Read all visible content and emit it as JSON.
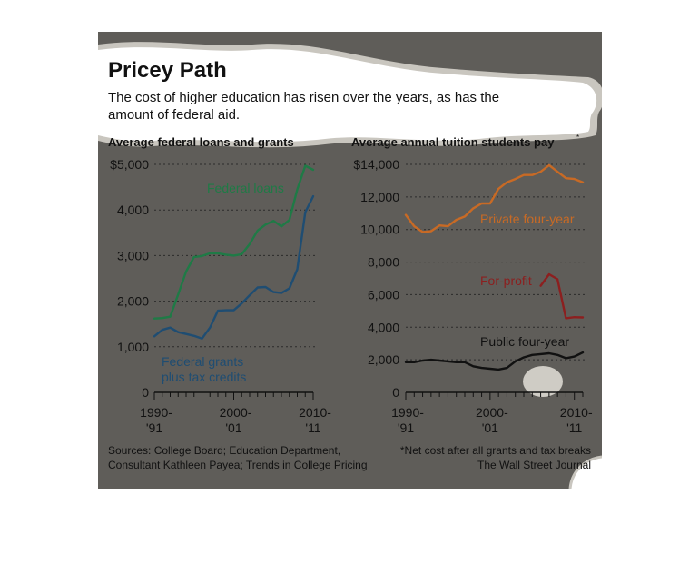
{
  "header": {
    "title": "Pricey Path",
    "subtitle_line1": "The cost of higher education has risen over the years, as has the",
    "subtitle_line2": "amount of federal aid."
  },
  "colors": {
    "background": "#5f5d59",
    "paper": "#ffffff",
    "banner_edge": "#c9c6bf",
    "gridline": "#2b2b2b",
    "text_light": "#ffffff",
    "text_dark": "#1a1a1a",
    "federal_loans": "#1f7a46",
    "federal_grants": "#1f4d72",
    "private_four_year": "#c86a25",
    "for_profit": "#8c1f1f",
    "public_four_year": "#111111"
  },
  "chart_data": [
    {
      "type": "line",
      "title": "Average federal loans and grants",
      "x_tick_labels": [
        [
          "1990-",
          "'91"
        ],
        [
          "2000-",
          "'01"
        ],
        [
          "2010-",
          "'11"
        ]
      ],
      "y_tick_labels": [
        "0",
        "1,000",
        "2,000",
        "3,000",
        "4,000",
        "$5,000"
      ],
      "ylim": [
        0,
        5000
      ],
      "grid": true,
      "series": [
        {
          "name": "Federal loans",
          "color": "#1f7a46",
          "points": [
            [
              1990,
              1620
            ],
            [
              1991,
              1630
            ],
            [
              1992,
              1660
            ],
            [
              1993,
              2150
            ],
            [
              1994,
              2650
            ],
            [
              1995,
              2970
            ],
            [
              1996,
              2990
            ],
            [
              1997,
              3050
            ],
            [
              1998,
              3050
            ],
            [
              1999,
              3020
            ],
            [
              2000,
              3000
            ],
            [
              2001,
              3030
            ],
            [
              2002,
              3250
            ],
            [
              2003,
              3550
            ],
            [
              2004,
              3680
            ],
            [
              2005,
              3760
            ],
            [
              2006,
              3640
            ],
            [
              2007,
              3780
            ],
            [
              2008,
              4450
            ],
            [
              2009,
              4970
            ],
            [
              2010,
              4880
            ]
          ]
        },
        {
          "name": "Federal grants plus tax credits",
          "color": "#1f4d72",
          "points": [
            [
              1990,
              1230
            ],
            [
              1991,
              1370
            ],
            [
              1992,
              1420
            ],
            [
              1993,
              1320
            ],
            [
              1994,
              1280
            ],
            [
              1995,
              1240
            ],
            [
              1996,
              1180
            ],
            [
              1997,
              1420
            ],
            [
              1998,
              1790
            ],
            [
              1999,
              1800
            ],
            [
              2000,
              1800
            ],
            [
              2001,
              1950
            ],
            [
              2002,
              2130
            ],
            [
              2003,
              2300
            ],
            [
              2004,
              2310
            ],
            [
              2005,
              2200
            ],
            [
              2006,
              2180
            ],
            [
              2007,
              2280
            ],
            [
              2008,
              2700
            ],
            [
              2009,
              3950
            ],
            [
              2010,
              4300
            ]
          ]
        }
      ],
      "labels": {
        "federal_loans": "Federal loans",
        "grants_line1": "Federal grants",
        "grants_line2": "plus tax credits"
      }
    },
    {
      "type": "line",
      "title": "Average annual tuition students pay",
      "title_marker": "*",
      "x_tick_labels": [
        [
          "1990-",
          "'91"
        ],
        [
          "2000-",
          "'01"
        ],
        [
          "2010-",
          "'11"
        ]
      ],
      "y_tick_labels": [
        "0",
        "2,000",
        "4,000",
        "6,000",
        "8,000",
        "10,000",
        "12,000",
        "$14,000"
      ],
      "ylim": [
        0,
        14000
      ],
      "grid": true,
      "series": [
        {
          "name": "Private four-year",
          "color": "#c86a25",
          "points": [
            [
              1990,
              10900
            ],
            [
              1991,
              10200
            ],
            [
              1992,
              9850
            ],
            [
              1993,
              9900
            ],
            [
              1994,
              10250
            ],
            [
              1995,
              10200
            ],
            [
              1996,
              10600
            ],
            [
              1997,
              10800
            ],
            [
              1998,
              11300
            ],
            [
              1999,
              11600
            ],
            [
              2000,
              11600
            ],
            [
              2001,
              12500
            ],
            [
              2002,
              12900
            ],
            [
              2003,
              13100
            ],
            [
              2004,
              13350
            ],
            [
              2005,
              13350
            ],
            [
              2006,
              13550
            ],
            [
              2007,
              13950
            ],
            [
              2008,
              13550
            ],
            [
              2009,
              13150
            ],
            [
              2010,
              13100
            ],
            [
              2011,
              12900
            ]
          ]
        },
        {
          "name": "For-profit",
          "color": "#8c1f1f",
          "points": [
            [
              2006,
              6550
            ],
            [
              2007,
              7250
            ],
            [
              2008,
              6950
            ],
            [
              2009,
              4550
            ],
            [
              2010,
              4620
            ],
            [
              2011,
              4600
            ]
          ]
        },
        {
          "name": "Public four-year",
          "color": "#111111",
          "points": [
            [
              1990,
              1850
            ],
            [
              1991,
              1850
            ],
            [
              1992,
              1950
            ],
            [
              1993,
              2000
            ],
            [
              1994,
              1950
            ],
            [
              1995,
              1900
            ],
            [
              1996,
              1850
            ],
            [
              1997,
              1850
            ],
            [
              1998,
              1600
            ],
            [
              1999,
              1500
            ],
            [
              2000,
              1450
            ],
            [
              2001,
              1400
            ],
            [
              2002,
              1500
            ],
            [
              2003,
              1900
            ],
            [
              2004,
              2150
            ],
            [
              2005,
              2300
            ],
            [
              2006,
              2350
            ],
            [
              2007,
              2400
            ],
            [
              2008,
              2300
            ],
            [
              2009,
              2100
            ],
            [
              2010,
              2200
            ],
            [
              2011,
              2450
            ]
          ]
        }
      ],
      "labels": {
        "private": "Private four-year",
        "for_profit": "For-profit",
        "public": "Public four-year"
      }
    }
  ],
  "footer": {
    "sources_line1": "Sources: College Board; Education Department,",
    "sources_line2": "Consultant Kathleen Payea; Trends in College Pricing",
    "note": "*Net cost after all grants and tax breaks",
    "credit": "The Wall Street Journal"
  }
}
